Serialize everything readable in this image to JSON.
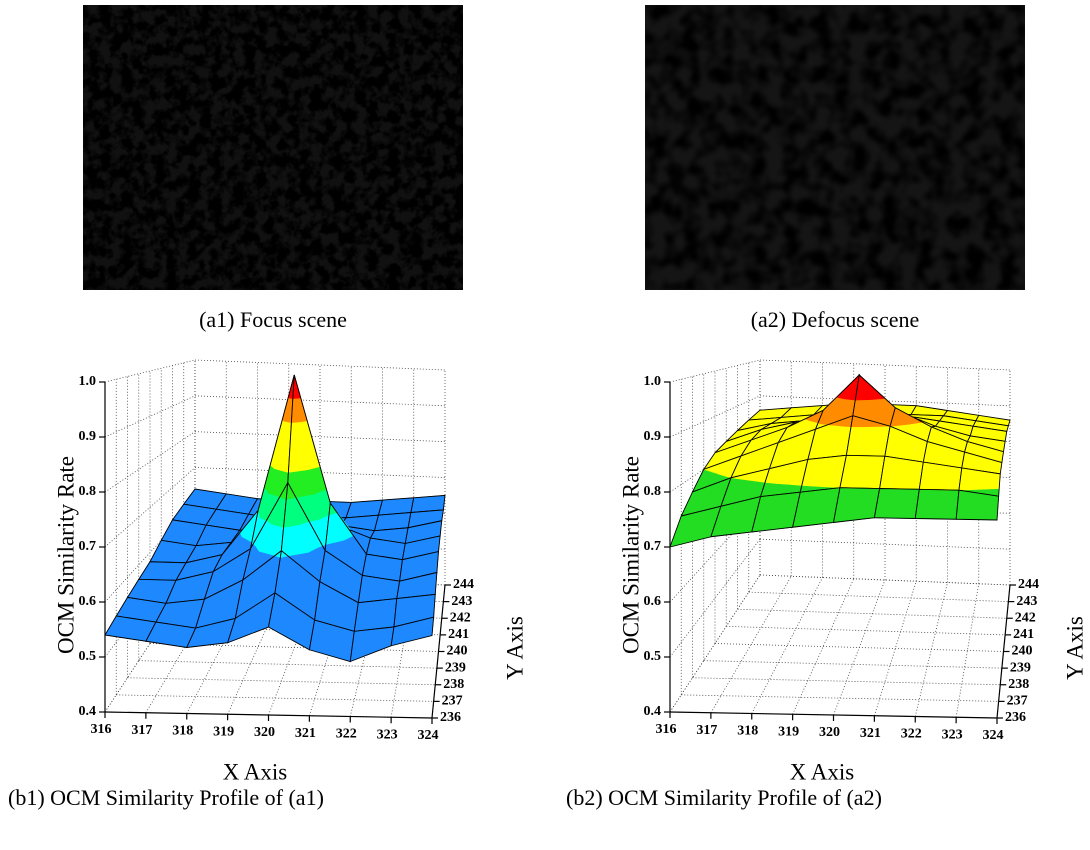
{
  "images": [
    {
      "caption": "(a1) Focus scene"
    },
    {
      "caption": "(a2) Defocus scene"
    }
  ],
  "chart_data": [
    {
      "type": "surface3d",
      "caption": "(b1) OCM Similarity Profile of (a1)",
      "xlabel": "X Axis",
      "ylabel": "Y Axis",
      "zlabel": "OCM Similarity Rate",
      "xlim": [
        316,
        324
      ],
      "xticks": [
        316,
        317,
        318,
        319,
        320,
        321,
        322,
        323,
        324
      ],
      "ylim": [
        236,
        244
      ],
      "yticks": [
        236,
        237,
        238,
        239,
        240,
        241,
        242,
        243,
        244
      ],
      "zlim": [
        0.4,
        1
      ],
      "zticks": [
        0.4,
        0.5,
        0.6,
        0.7,
        0.8,
        0.9,
        {
          "value": 1,
          "label": "1.0"
        }
      ],
      "grid": true,
      "colors": [
        "#1e88ff",
        "#1e88ff",
        "#1e88ff",
        "#1e88ff",
        "#1e88ff",
        "#00ffff",
        "#00ff7f",
        "#22ee22",
        "#ffff00",
        "#ffff00",
        "#ff8c00",
        "#ff0000"
      ],
      "surface": {
        "x": [
          316,
          317,
          318,
          319,
          320,
          321,
          322,
          323,
          324
        ],
        "y": [
          236,
          237,
          238,
          239,
          240,
          241,
          242,
          243,
          244
        ],
        "z": [
          [
            0.54,
            0.53,
            0.52,
            0.53,
            0.56,
            0.52,
            0.5,
            0.53,
            0.55
          ],
          [
            0.55,
            0.54,
            0.53,
            0.55,
            0.6,
            0.55,
            0.53,
            0.54,
            0.56
          ],
          [
            0.56,
            0.55,
            0.56,
            0.6,
            0.66,
            0.6,
            0.56,
            0.57,
            0.58
          ],
          [
            0.57,
            0.57,
            0.59,
            0.64,
            0.78,
            0.64,
            0.59,
            0.58,
            0.6
          ],
          [
            0.58,
            0.58,
            0.6,
            0.7,
            1.0,
            0.72,
            0.61,
            0.6,
            0.62
          ],
          [
            0.6,
            0.59,
            0.6,
            0.64,
            0.76,
            0.65,
            0.62,
            0.61,
            0.63
          ],
          [
            0.62,
            0.61,
            0.6,
            0.61,
            0.65,
            0.62,
            0.61,
            0.62,
            0.64
          ],
          [
            0.63,
            0.62,
            0.61,
            0.6,
            0.61,
            0.61,
            0.62,
            0.63,
            0.64
          ],
          [
            0.64,
            0.63,
            0.62,
            0.62,
            0.62,
            0.62,
            0.63,
            0.64,
            0.65
          ]
        ]
      }
    },
    {
      "type": "surface3d",
      "caption": "(b2) OCM Similarity Profile of (a2)",
      "xlabel": "X Axis",
      "ylabel": "Y Axis",
      "zlabel": "OCM Similarity Rate",
      "xlim": [
        316,
        324
      ],
      "xticks": [
        316,
        317,
        318,
        319,
        320,
        321,
        322,
        323,
        324
      ],
      "ylim": [
        236,
        244
      ],
      "yticks": [
        236,
        237,
        238,
        239,
        240,
        241,
        242,
        243,
        244
      ],
      "zlim": [
        0.4,
        1
      ],
      "zticks": [
        0.4,
        0.5,
        0.6,
        0.7,
        0.8,
        0.9,
        {
          "value": 1,
          "label": "1.0"
        }
      ],
      "grid": true,
      "colors": [
        "#22dd22",
        "#22dd22",
        "#22dd22",
        "#22dd22",
        "#22dd22",
        "#22dd22",
        "#22dd22",
        "#22dd22",
        "#ffff00",
        "#ffff00",
        "#ff8c00",
        "#ff0000"
      ],
      "surface": {
        "x": [
          316,
          317,
          318,
          319,
          320,
          321,
          322,
          323,
          324
        ],
        "y": [
          236,
          237,
          238,
          239,
          240,
          241,
          242,
          243,
          244
        ],
        "z": [
          [
            0.7,
            0.72,
            0.73,
            0.74,
            0.75,
            0.76,
            0.76,
            0.76,
            0.76
          ],
          [
            0.74,
            0.76,
            0.78,
            0.79,
            0.8,
            0.8,
            0.8,
            0.8,
            0.79
          ],
          [
            0.77,
            0.8,
            0.82,
            0.84,
            0.85,
            0.85,
            0.84,
            0.83,
            0.82
          ],
          [
            0.8,
            0.83,
            0.86,
            0.89,
            0.92,
            0.9,
            0.87,
            0.85,
            0.83
          ],
          [
            0.82,
            0.85,
            0.88,
            0.92,
            1.0,
            0.93,
            0.89,
            0.86,
            0.84
          ],
          [
            0.83,
            0.86,
            0.88,
            0.9,
            0.92,
            0.91,
            0.88,
            0.86,
            0.85
          ],
          [
            0.84,
            0.86,
            0.87,
            0.88,
            0.89,
            0.89,
            0.88,
            0.87,
            0.86
          ],
          [
            0.85,
            0.86,
            0.87,
            0.88,
            0.88,
            0.88,
            0.88,
            0.87,
            0.86
          ],
          [
            0.86,
            0.87,
            0.88,
            0.89,
            0.89,
            0.89,
            0.88,
            0.87,
            0.86
          ]
        ]
      }
    }
  ]
}
